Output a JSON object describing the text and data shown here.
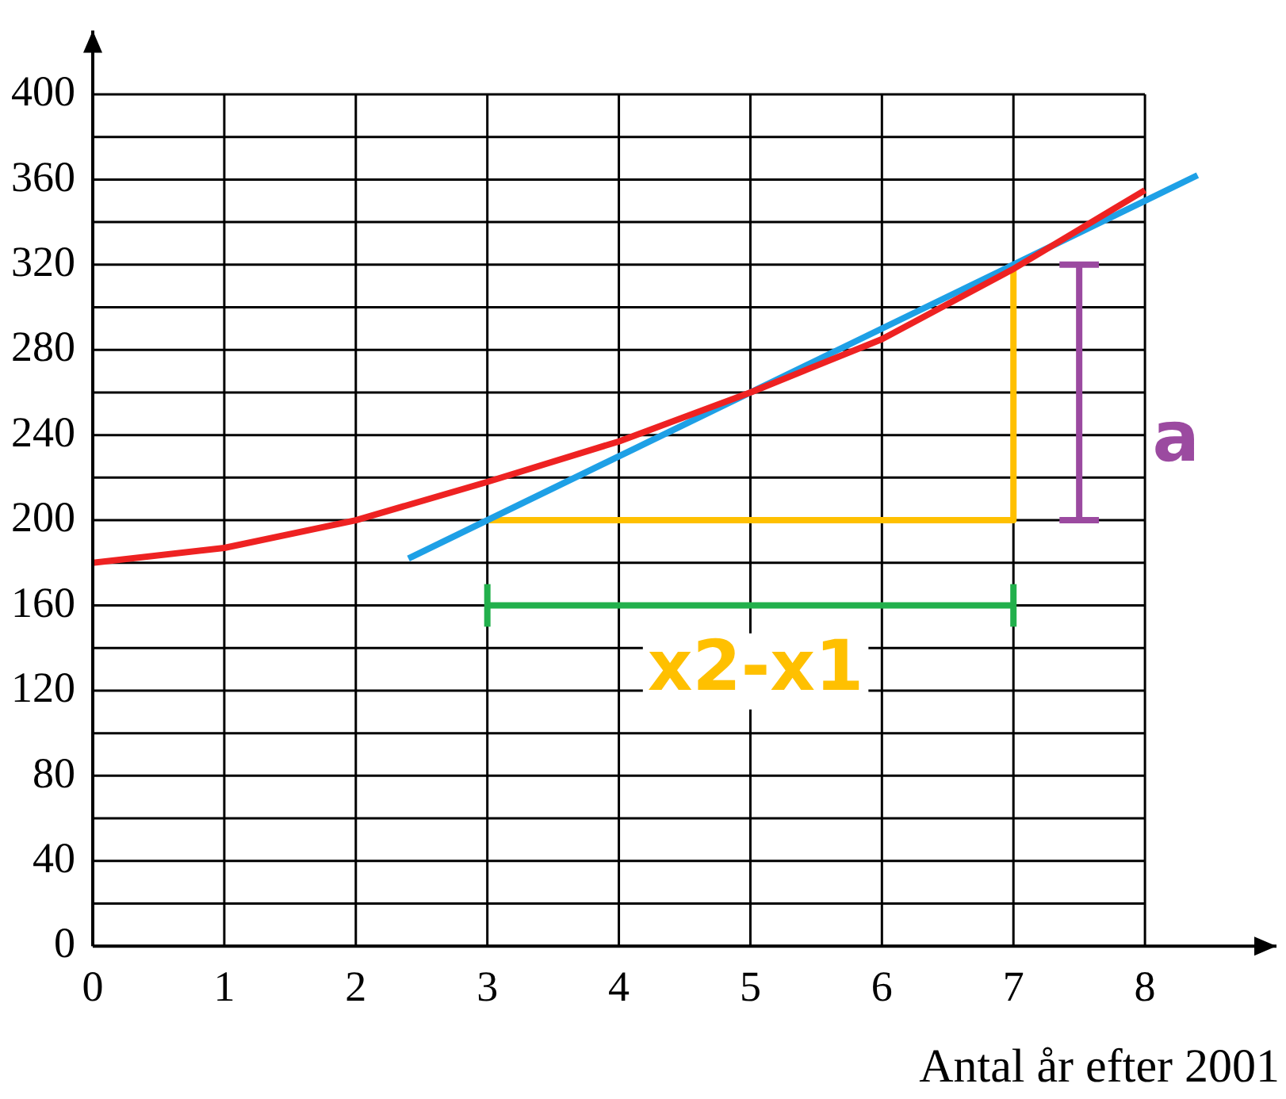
{
  "chart_data": {
    "type": "line",
    "xlabel": "Antal år efter 2001",
    "xlim": [
      0,
      9
    ],
    "ylim": [
      0,
      430
    ],
    "xticks": [
      0,
      1,
      2,
      3,
      4,
      5,
      6,
      7,
      8
    ],
    "yticks": [
      0,
      {
        "value": 20,
        "label": null
      },
      40,
      {
        "value": 60,
        "label": null
      },
      80,
      {
        "value": 100,
        "label": null
      },
      120,
      {
        "value": 140,
        "label": null
      },
      160,
      {
        "value": 180,
        "label": null
      },
      200,
      {
        "value": 220,
        "label": null
      },
      240,
      {
        "value": 260,
        "label": null
      },
      280,
      {
        "value": 300,
        "label": null
      },
      320,
      {
        "value": 340,
        "label": null
      },
      360,
      {
        "value": 380,
        "label": null
      },
      400
    ],
    "grid": true,
    "legend": false,
    "marker": "none",
    "line_style": "solid",
    "series": [
      {
        "color": "#ee2222",
        "x": [
          0,
          1,
          2,
          3,
          4,
          5,
          6,
          7,
          8
        ],
        "values": [
          180,
          187,
          200,
          218,
          237,
          260,
          285,
          318,
          355
        ]
      },
      {
        "color": "#1ea0e6",
        "x": [
          2.4,
          8.4
        ],
        "values": [
          182,
          362
        ]
      },
      {
        "color": "#ffc000",
        "x": [
          3,
          7,
          7
        ],
        "values": [
          200,
          200,
          320
        ]
      },
      {
        "color": "#22b04c",
        "x": [
          3,
          7
        ],
        "values": [
          160,
          160
        ]
      },
      {
        "color": "#22b04c",
        "x": [
          3,
          3
        ],
        "values": [
          150,
          170
        ]
      },
      {
        "color": "#22b04c",
        "x": [
          7,
          7
        ],
        "values": [
          150,
          170
        ]
      },
      {
        "color": "#9b4aa0",
        "x": [
          7.5,
          7.5
        ],
        "values": [
          200,
          320
        ]
      },
      {
        "color": "#9b4aa0",
        "x": [
          7.35,
          7.65
        ],
        "values": [
          320,
          320
        ]
      },
      {
        "color": "#9b4aa0",
        "x": [
          7.35,
          7.65
        ],
        "values": [
          200,
          200
        ]
      }
    ],
    "annotations": [
      "a",
      "x2-x1"
    ]
  }
}
